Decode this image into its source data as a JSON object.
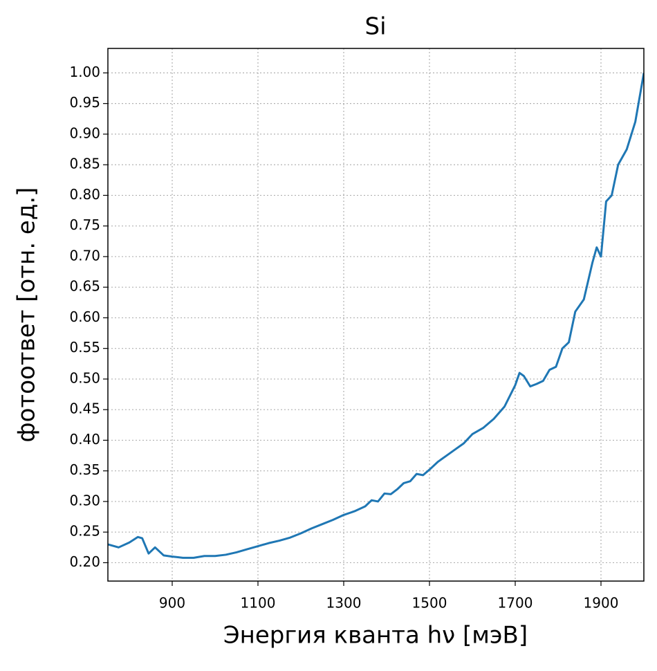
{
  "chart_data": {
    "type": "line",
    "title": "Si",
    "xlabel": "Энергия кванта hν [мэВ]",
    "ylabel": "фотоответ [отн. ед.]",
    "x": [
      750,
      775,
      800,
      820,
      830,
      845,
      860,
      880,
      900,
      925,
      950,
      975,
      1000,
      1025,
      1050,
      1075,
      1100,
      1125,
      1150,
      1175,
      1200,
      1225,
      1250,
      1275,
      1300,
      1325,
      1350,
      1365,
      1380,
      1395,
      1410,
      1425,
      1440,
      1455,
      1470,
      1485,
      1500,
      1520,
      1540,
      1560,
      1580,
      1600,
      1625,
      1650,
      1675,
      1700,
      1710,
      1720,
      1735,
      1750,
      1765,
      1780,
      1795,
      1810,
      1825,
      1840,
      1860,
      1880,
      1890,
      1900,
      1912,
      1925,
      1940,
      1960,
      1980,
      2000
    ],
    "series": [
      {
        "name": "Si",
        "color": "#1f77b4",
        "values": [
          0.23,
          0.225,
          0.233,
          0.242,
          0.24,
          0.215,
          0.225,
          0.212,
          0.21,
          0.208,
          0.208,
          0.211,
          0.211,
          0.213,
          0.217,
          0.222,
          0.227,
          0.232,
          0.236,
          0.241,
          0.248,
          0.256,
          0.263,
          0.27,
          0.278,
          0.284,
          0.292,
          0.302,
          0.3,
          0.313,
          0.312,
          0.32,
          0.33,
          0.333,
          0.345,
          0.343,
          0.352,
          0.365,
          0.375,
          0.385,
          0.395,
          0.41,
          0.42,
          0.435,
          0.455,
          0.49,
          0.51,
          0.505,
          0.488,
          0.492,
          0.497,
          0.515,
          0.52,
          0.55,
          0.56,
          0.61,
          0.63,
          0.69,
          0.715,
          0.7,
          0.79,
          0.8,
          0.85,
          0.875,
          0.92,
          1.0
        ]
      }
    ],
    "xlim": [
      750,
      2000
    ],
    "ylim": [
      0.17,
      1.04
    ],
    "xticks": [
      900,
      1100,
      1300,
      1500,
      1700,
      1900
    ],
    "yticks": [
      {
        "value": 0.2,
        "label": "0.20"
      },
      {
        "value": 0.25,
        "label": "0.25"
      },
      {
        "value": 0.3,
        "label": "0.30"
      },
      {
        "value": 0.35,
        "label": "0.35"
      },
      {
        "value": 0.4,
        "label": "0.40"
      },
      {
        "value": 0.45,
        "label": "0.45"
      },
      {
        "value": 0.5,
        "label": "0.50"
      },
      {
        "value": 0.55,
        "label": "0.55"
      },
      {
        "value": 0.6,
        "label": "0.60"
      },
      {
        "value": 0.65,
        "label": "0.65"
      },
      {
        "value": 0.7,
        "label": "0.70"
      },
      {
        "value": 0.75,
        "label": "0.75"
      },
      {
        "value": 0.8,
        "label": "0.80"
      },
      {
        "value": 0.85,
        "label": "0.85"
      },
      {
        "value": 0.9,
        "label": "0.90"
      },
      {
        "value": 0.95,
        "label": "0.95"
      },
      {
        "value": 1.0,
        "label": "1.00"
      }
    ],
    "grid": true
  }
}
